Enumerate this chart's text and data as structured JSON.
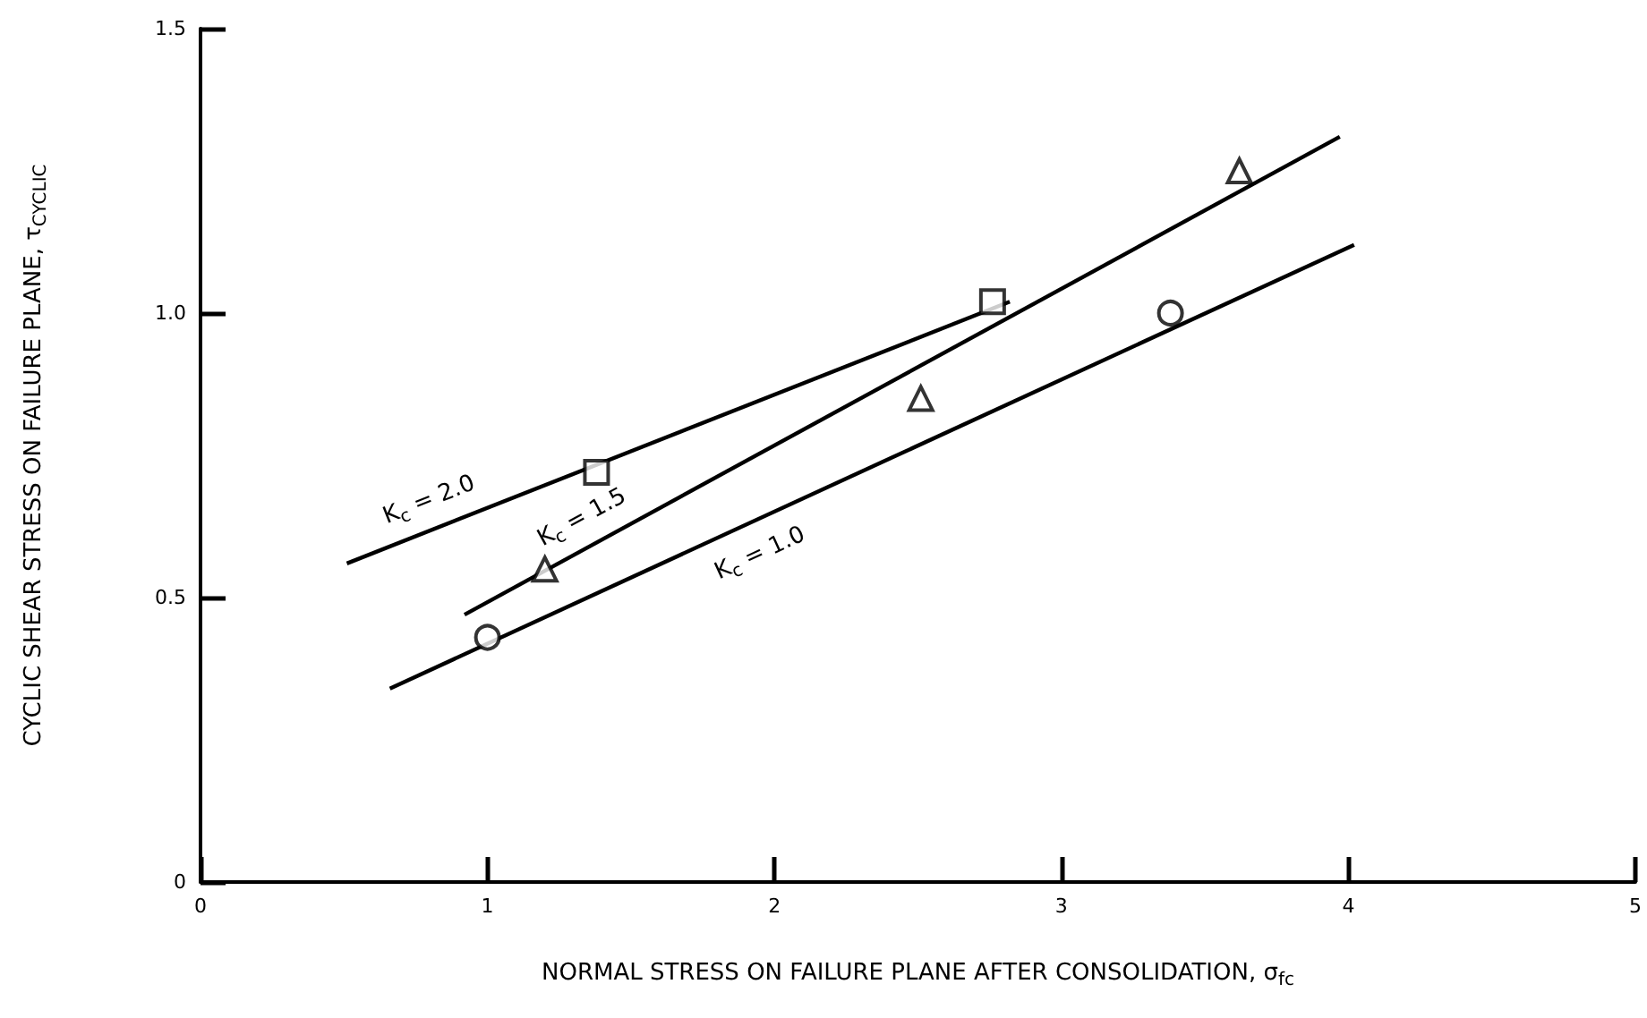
{
  "chart_data": {
    "type": "line",
    "xlabel": "NORMAL STRESS ON FAILURE PLANE AFTER CONSOLIDATION, σ$_{fc}$",
    "ylabel": "CYCLIC SHEAR STRESS ON FAILURE PLANE, τ$_{CYCLIC}$",
    "xlim": [
      0,
      5
    ],
    "xticks": [
      0,
      1,
      2,
      3,
      4,
      5
    ],
    "ylim": [
      0,
      1.5
    ],
    "yticks": [
      0,
      0.5,
      {
        "value": 1,
        "label": "1.0"
      },
      1.5
    ],
    "grid": false,
    "series": [
      {
        "marker": "none",
        "color": "#000000",
        "x": [
          0.51,
          2.82
        ],
        "values": [
          0.56,
          1.02
        ]
      },
      {
        "marker": "none",
        "color": "#000000",
        "x": [
          0.92,
          3.97
        ],
        "values": [
          0.47,
          1.31
        ]
      },
      {
        "marker": "none",
        "color": "#000000",
        "x": [
          0.66,
          4.02
        ],
        "values": [
          0.34,
          1.12
        ]
      },
      {
        "type": "scatter",
        "marker": "circle",
        "color": "#000000",
        "x": [
          1.0,
          3.38
        ],
        "values": [
          0.43,
          1.0
        ]
      },
      {
        "type": "scatter",
        "marker": "triangle",
        "color": "#000000",
        "x": [
          1.2,
          2.51,
          3.62
        ],
        "values": [
          0.55,
          0.85,
          1.25
        ]
      },
      {
        "type": "scatter",
        "marker": "square",
        "color": "#000000",
        "x": [
          1.38,
          2.76
        ],
        "values": [
          0.72,
          1.02
        ]
      }
    ],
    "annotations": [
      "K$_{c}$ = 2.0",
      "K$_{c}$ = 1.5",
      "K$_{c}$ = 1.0"
    ]
  }
}
